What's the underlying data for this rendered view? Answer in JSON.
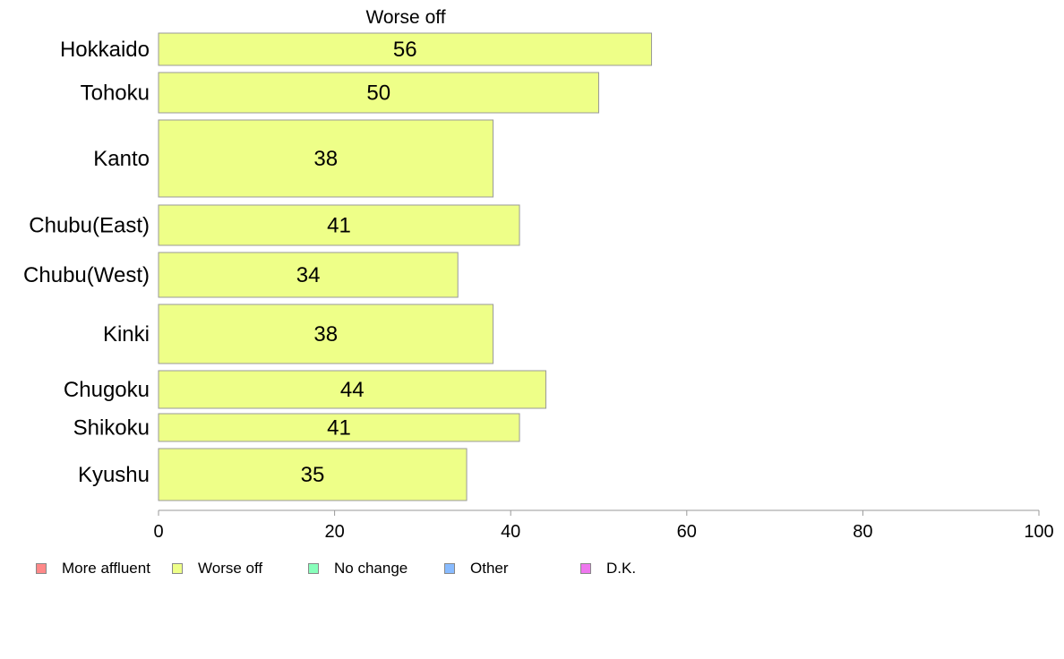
{
  "chart_data": {
    "type": "bar",
    "orientation": "horizontal",
    "title": "Worse off",
    "categories": [
      "Hokkaido",
      "Tohoku",
      "Kanto",
      "Chubu(East)",
      "Chubu(West)",
      "Kinki",
      "Chugoku",
      "Shikoku",
      "Kyushu"
    ],
    "series": [
      {
        "name": "Worse off",
        "values": [
          56,
          50,
          38,
          41,
          34,
          38,
          44,
          41,
          35
        ]
      }
    ],
    "xlim": [
      0,
      100
    ],
    "xticks": [
      "0",
      "20",
      "40",
      "60",
      "80",
      "100"
    ],
    "grid": false,
    "legend_position": "bottom",
    "bar_color": "#eeff88",
    "bar_border": "#999999",
    "legend": [
      {
        "label": "More affluent",
        "color": "#ff8888"
      },
      {
        "label": "Worse off",
        "color": "#eeff88"
      },
      {
        "label": "No change",
        "color": "#88ffbb"
      },
      {
        "label": "Other",
        "color": "#88bbff"
      },
      {
        "label": "D.K.",
        "color": "#ee77ee"
      }
    ]
  }
}
